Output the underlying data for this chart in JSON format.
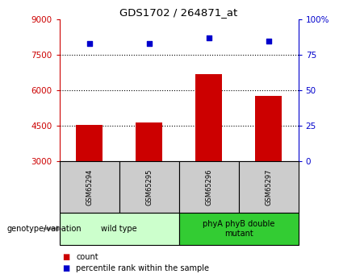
{
  "title": "GDS1702 / 264871_at",
  "samples": [
    "GSM65294",
    "GSM65295",
    "GSM65296",
    "GSM65297"
  ],
  "counts": [
    4550,
    4650,
    6700,
    5750
  ],
  "percentiles": [
    83,
    83,
    87,
    85
  ],
  "ylim_left": [
    3000,
    9000
  ],
  "ylim_right": [
    0,
    100
  ],
  "yticks_left": [
    3000,
    4500,
    6000,
    7500,
    9000
  ],
  "yticks_right": [
    0,
    25,
    50,
    75,
    100
  ],
  "ytick_labels_right": [
    "0",
    "25",
    "50",
    "75",
    "100%"
  ],
  "bar_color": "#cc0000",
  "dot_color": "#0000cc",
  "bar_width": 0.45,
  "groups": [
    {
      "label": "wild type",
      "samples": [
        0,
        1
      ],
      "color": "#ccffcc"
    },
    {
      "label": "phyA phyB double\nmutant",
      "samples": [
        2,
        3
      ],
      "color": "#33cc33"
    }
  ],
  "group_label_prefix": "genotype/variation",
  "legend_count_label": "count",
  "legend_percentile_label": "percentile rank within the sample",
  "title_color": "#000000",
  "left_axis_color": "#cc0000",
  "right_axis_color": "#0000cc",
  "sample_cell_color": "#cccccc",
  "sample_cell_border": "#000000",
  "bg_color": "#ffffff"
}
